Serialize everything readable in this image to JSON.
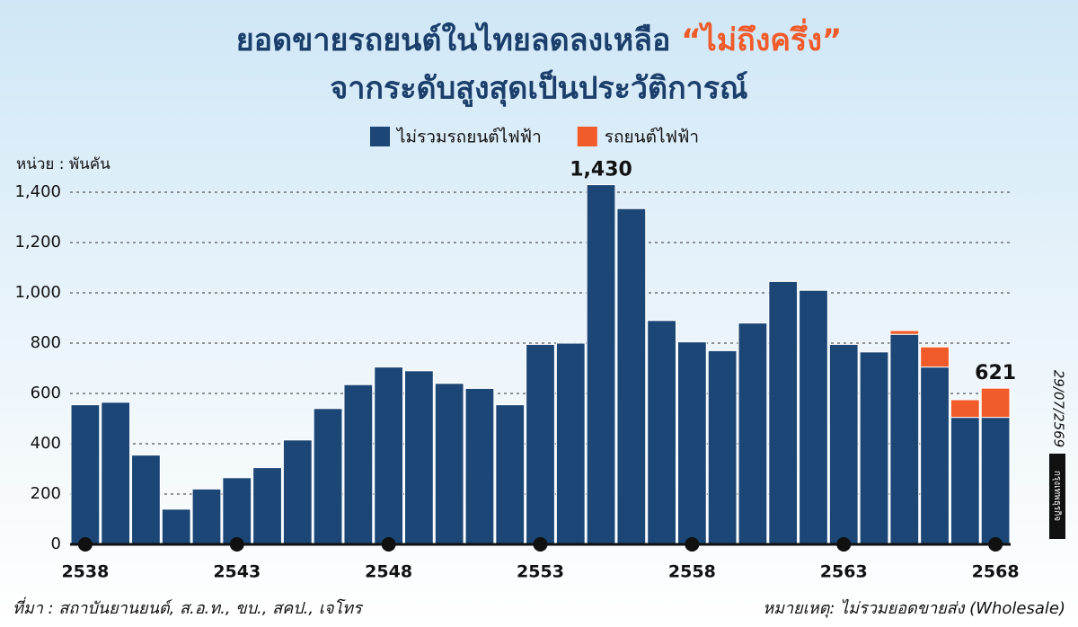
{
  "chart_data": {
    "type": "stacked_bar",
    "title": "ยอดขายรถยนต์ในไทยลดลงเหลือ ",
    "title_highlight": "“ไม่ถึงครึ่ง”",
    "subtitle": "จากระดับสูงสุดเป็นประวัติการณ์",
    "y_label": "หน่วย : พันคัน",
    "categories": [
      "2538",
      null,
      null,
      null,
      null,
      "2543",
      null,
      null,
      null,
      null,
      "2548",
      null,
      null,
      null,
      null,
      "2553",
      null,
      null,
      null,
      null,
      "2558",
      null,
      null,
      null,
      null,
      "2563",
      null,
      null,
      null,
      null,
      "2568"
    ],
    "series": [
      {
        "name": "ไม่รวมรถยนต์ไฟฟ้า",
        "color": "#1b4676",
        "values": [
          555,
          565,
          355,
          140,
          220,
          265,
          305,
          415,
          540,
          635,
          705,
          690,
          640,
          620,
          555,
          795,
          800,
          1430,
          1335,
          890,
          805,
          770,
          880,
          1045,
          1010,
          795,
          765,
          835,
          705,
          505,
          505
        ]
      },
      {
        "name": "รถยนต์ไฟฟ้า",
        "color": "#f15a29",
        "values": [
          null,
          null,
          null,
          null,
          null,
          null,
          null,
          null,
          null,
          null,
          null,
          null,
          null,
          null,
          null,
          null,
          null,
          null,
          null,
          null,
          null,
          null,
          null,
          null,
          null,
          null,
          null,
          15,
          80,
          70,
          116
        ]
      }
    ],
    "annotations": [
      {
        "text": "1,430",
        "value": 1430
      },
      {
        "text": "621",
        "value": 621
      }
    ],
    "ylim": [
      0,
      1500
    ],
    "yticks": [
      0,
      200,
      400,
      600,
      800,
      {
        "value": 1000,
        "label": "1,000"
      },
      {
        "value": 1200,
        "label": "1,200"
      },
      {
        "value": 1400,
        "label": "1,400"
      }
    ],
    "grid": true,
    "source": "ที่มา : สถาบันยานยนต์, ส.อ.ท., ขบ., สคป., เจโทร",
    "note": "หมายเหตุ: ไม่รวมยอดขายส่ง (Wholesale)",
    "date": "29/07/2569",
    "brand": "กรุงเทพธุรกิจ"
  }
}
